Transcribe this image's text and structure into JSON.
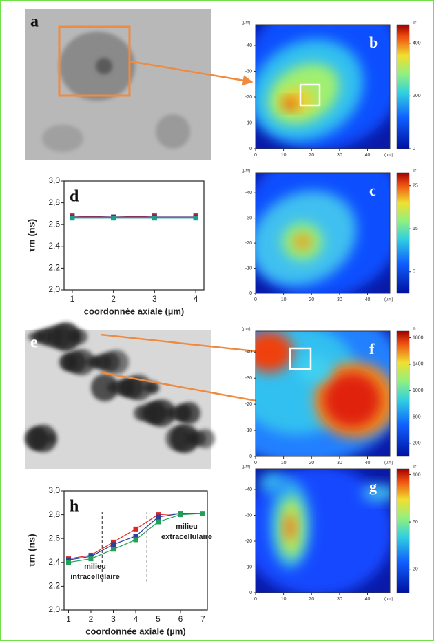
{
  "chart_data": [
    {
      "type": "image",
      "label": "a"
    },
    {
      "type": "heatmap",
      "label": "b",
      "x_unit": "(µm)",
      "y_unit": "(µm)",
      "xlim": [
        0,
        48
      ],
      "xticks": [
        0,
        10,
        20,
        30,
        40
      ],
      "ylim": [
        0,
        -48
      ],
      "yticks": [
        -40,
        -30,
        -20,
        -10,
        0
      ],
      "colorbar_label": "Ir",
      "clim": [
        0,
        470
      ],
      "cticks": [
        0,
        200,
        400
      ]
    },
    {
      "type": "line",
      "label": "d",
      "xlabel": "coordonnée axiale (µm)",
      "ylabel": "τm (ns)",
      "x": [
        1,
        2,
        3,
        4
      ],
      "xlim": [
        0.8,
        4.2
      ],
      "xticks": [
        1,
        2,
        3,
        4
      ],
      "ylim": [
        2,
        3
      ],
      "yticks": [
        {
          "value": 2,
          "label": "2,0"
        },
        {
          "value": 2.2,
          "label": "2,2"
        },
        {
          "value": 2.4,
          "label": "2,4"
        },
        {
          "value": 2.6,
          "label": "2,6"
        },
        {
          "value": 2.8,
          "label": "2,8"
        },
        {
          "value": 3,
          "label": "3,0"
        }
      ],
      "series": [
        {
          "color": "#e02424",
          "values": [
            2.68,
            2.67,
            2.68,
            2.68
          ]
        },
        {
          "color": "#2a3f9e",
          "values": [
            2.67,
            2.67,
            2.67,
            2.67
          ]
        },
        {
          "color": "#1d9e8a",
          "values": [
            2.66,
            2.66,
            2.66,
            2.66
          ]
        }
      ]
    },
    {
      "type": "heatmap",
      "label": "c",
      "x_unit": "(µm)",
      "y_unit": "(µm)",
      "xlim": [
        0,
        48
      ],
      "xticks": [
        0,
        10,
        20,
        30,
        40
      ],
      "ylim": [
        0,
        -48
      ],
      "yticks": [
        -40,
        -30,
        -20,
        -10,
        0
      ],
      "colorbar_label": "Ir",
      "clim": [
        0,
        28
      ],
      "cticks": [
        5,
        15,
        25
      ]
    },
    {
      "type": "image",
      "label": "e"
    },
    {
      "type": "heatmap",
      "label": "f",
      "x_unit": "(µm)",
      "y_unit": "(µm)",
      "xlim": [
        0,
        48
      ],
      "xticks": [
        0,
        10,
        20,
        30,
        40
      ],
      "ylim": [
        0,
        -48
      ],
      "yticks": [
        -40,
        -30,
        -20,
        -10,
        0
      ],
      "colorbar_label": "Ir",
      "clim": [
        0,
        1900
      ],
      "cticks": [
        200,
        600,
        1000,
        1400,
        1800
      ]
    },
    {
      "type": "line",
      "label": "h",
      "xlabel": "coordonnée axiale (µm)",
      "ylabel": "τm (ns)",
      "x": [
        1,
        2,
        3,
        4,
        5,
        6,
        7
      ],
      "xlim": [
        0.8,
        7.2
      ],
      "xticks": [
        1,
        2,
        3,
        4,
        5,
        6,
        7
      ],
      "ylim": [
        2,
        3
      ],
      "yticks": [
        {
          "value": 2,
          "label": "2,0"
        },
        {
          "value": 2.2,
          "label": "2,2"
        },
        {
          "value": 2.4,
          "label": "2,4"
        },
        {
          "value": 2.6,
          "label": "2,6"
        },
        {
          "value": 2.8,
          "label": "2,8"
        },
        {
          "value": 3,
          "label": "3,0"
        }
      ],
      "vlines": [
        2.5,
        4.5
      ],
      "annotations": [
        [
          "milieu",
          "intracellulaire"
        ],
        [
          "milieu",
          "extracellulaire"
        ]
      ],
      "series": [
        {
          "color": "#e02424",
          "values": [
            2.43,
            2.46,
            2.57,
            2.68,
            2.8,
            2.81,
            2.81
          ]
        },
        {
          "color": "#2a3f9e",
          "values": [
            2.42,
            2.45,
            2.55,
            2.62,
            2.78,
            2.81,
            2.81
          ]
        },
        {
          "color": "#22a05a",
          "values": [
            2.4,
            2.43,
            2.51,
            2.59,
            2.74,
            2.8,
            2.81
          ]
        }
      ]
    },
    {
      "type": "heatmap",
      "label": "g",
      "x_unit": "(µm)",
      "y_unit": "(µm)",
      "xlim": [
        0,
        48
      ],
      "xticks": [
        0,
        10,
        20,
        30,
        40
      ],
      "ylim": [
        0,
        -48
      ],
      "yticks": [
        -40,
        -30,
        -20,
        -10,
        0
      ],
      "colorbar_label": "Ir",
      "clim": [
        0,
        105
      ],
      "cticks": [
        20,
        60,
        100
      ]
    }
  ]
}
